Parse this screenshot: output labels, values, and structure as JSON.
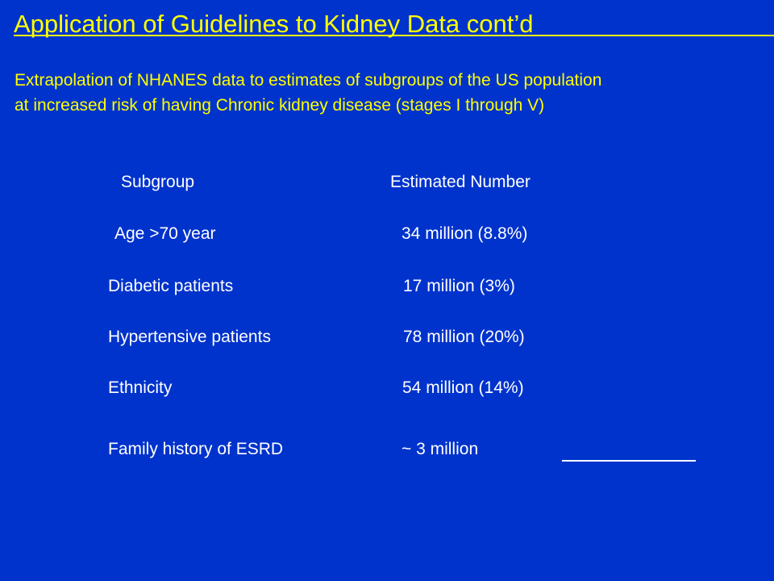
{
  "slide": {
    "title": "Application of Guidelines to Kidney Data cont’d",
    "subtitle_line1": "Extrapolation of NHANES data to estimates of subgroups of the US population",
    "subtitle_line2": "at increased risk of having Chronic kidney disease (stages I through V)"
  },
  "table": {
    "headers": {
      "subgroup": "Subgroup",
      "estimate": "Estimated Number"
    },
    "rows": [
      {
        "subgroup": "Age >70 year",
        "estimate": "34 million (8.8%)"
      },
      {
        "subgroup": "Diabetic patients",
        "estimate": "17 million (3%)"
      },
      {
        "subgroup": "Hypertensive patients",
        "estimate": "78 million (20%)"
      },
      {
        "subgroup": "Ethnicity",
        "estimate": "54 million (14%)"
      },
      {
        "subgroup": "Family history of ESRD",
        "estimate": "~ 3 million"
      }
    ]
  },
  "colors": {
    "background": "#0033cc",
    "title": "#ffff00",
    "body_text": "#ffffff"
  }
}
